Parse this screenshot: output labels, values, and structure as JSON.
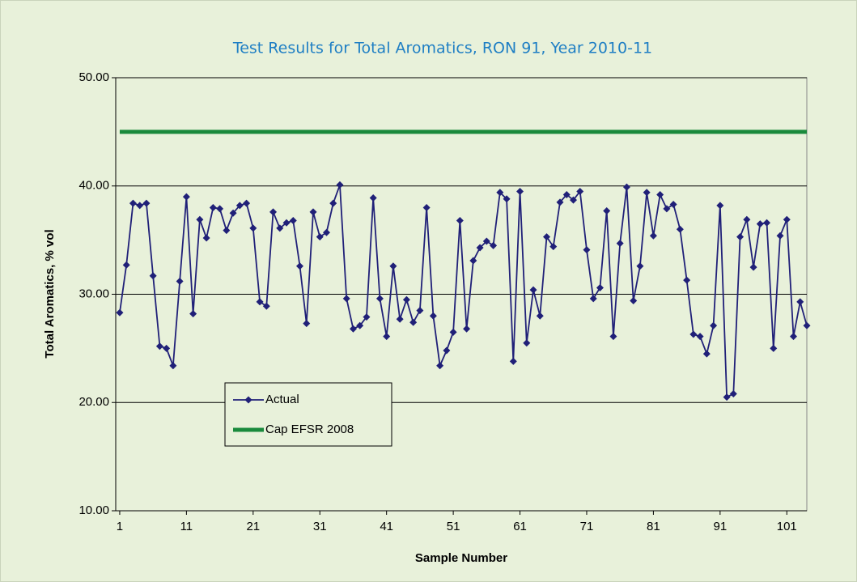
{
  "chart_data": {
    "type": "line",
    "title": "Test Results for Total Aromatics, RON 91, Year 2010-11",
    "x_label": "Sample Number",
    "y_label": "Total Aromatics, % vol",
    "x": [
      1,
      2,
      3,
      4,
      5,
      6,
      7,
      8,
      9,
      10,
      11,
      12,
      13,
      14,
      15,
      16,
      17,
      18,
      19,
      20,
      21,
      22,
      23,
      24,
      25,
      26,
      27,
      28,
      29,
      30,
      31,
      32,
      33,
      34,
      35,
      36,
      37,
      38,
      39,
      40,
      41,
      42,
      43,
      44,
      45,
      46,
      47,
      48,
      49,
      50,
      51,
      52,
      53,
      54,
      55,
      56,
      57,
      58,
      59,
      60,
      61,
      62,
      63,
      64,
      65,
      66,
      67,
      68,
      69,
      70,
      71,
      72,
      73,
      74,
      75,
      76,
      77,
      78,
      79,
      80,
      81,
      82,
      83,
      84,
      85,
      86,
      87,
      88,
      89,
      90,
      91,
      92,
      93,
      94,
      95,
      96,
      97,
      98,
      99,
      100,
      101,
      102,
      103,
      104
    ],
    "series": [
      {
        "name": "Actual",
        "color": "#202078",
        "marker": "diamond",
        "values": [
          28.3,
          32.7,
          38.4,
          38.2,
          38.4,
          31.7,
          25.2,
          25.0,
          23.4,
          31.2,
          39.0,
          28.2,
          36.9,
          35.2,
          38.0,
          37.9,
          35.9,
          37.5,
          38.2,
          38.4,
          36.1,
          29.3,
          28.9,
          37.6,
          36.1,
          36.6,
          36.8,
          32.6,
          27.3,
          37.6,
          35.3,
          35.7,
          38.4,
          40.1,
          29.6,
          26.8,
          27.1,
          27.9,
          38.9,
          29.6,
          26.1,
          32.6,
          27.7,
          29.5,
          27.4,
          28.5,
          38.0,
          28.0,
          23.4,
          24.8,
          26.5,
          36.8,
          26.8,
          33.1,
          34.3,
          34.9,
          34.5,
          39.4,
          38.8,
          23.8,
          39.5,
          25.5,
          30.4,
          28.0,
          35.3,
          34.4,
          38.5,
          39.2,
          38.7,
          39.5,
          34.1,
          29.6,
          30.6,
          37.7,
          26.1,
          34.7,
          39.9,
          29.4,
          32.6,
          39.4,
          35.4,
          39.2,
          37.9,
          38.3,
          36.0,
          31.3,
          26.3,
          26.1,
          24.5,
          27.1,
          38.2,
          20.5,
          20.8,
          35.3,
          36.9,
          32.5,
          36.5,
          36.6,
          25.0,
          35.4,
          36.9,
          26.1,
          29.3,
          27.1
        ]
      },
      {
        "name": "Cap EFSR 2008",
        "color": "#1a8a3c",
        "marker": "none",
        "x": [
          1,
          104
        ],
        "values": [
          45,
          45
        ]
      }
    ],
    "xlim": [
      0.4,
      104
    ],
    "xticks": [
      1,
      11,
      21,
      31,
      41,
      51,
      61,
      71,
      81,
      91,
      101
    ],
    "ylim": [
      10,
      50
    ],
    "yticks": [
      {
        "value": 10,
        "label": "10.00"
      },
      {
        "value": 20,
        "label": "20.00"
      },
      {
        "value": 30,
        "label": "30.00"
      },
      {
        "value": 40,
        "label": "40.00"
      },
      {
        "value": 50,
        "label": "50.00"
      }
    ],
    "grid": true,
    "legend": "lower-left"
  }
}
